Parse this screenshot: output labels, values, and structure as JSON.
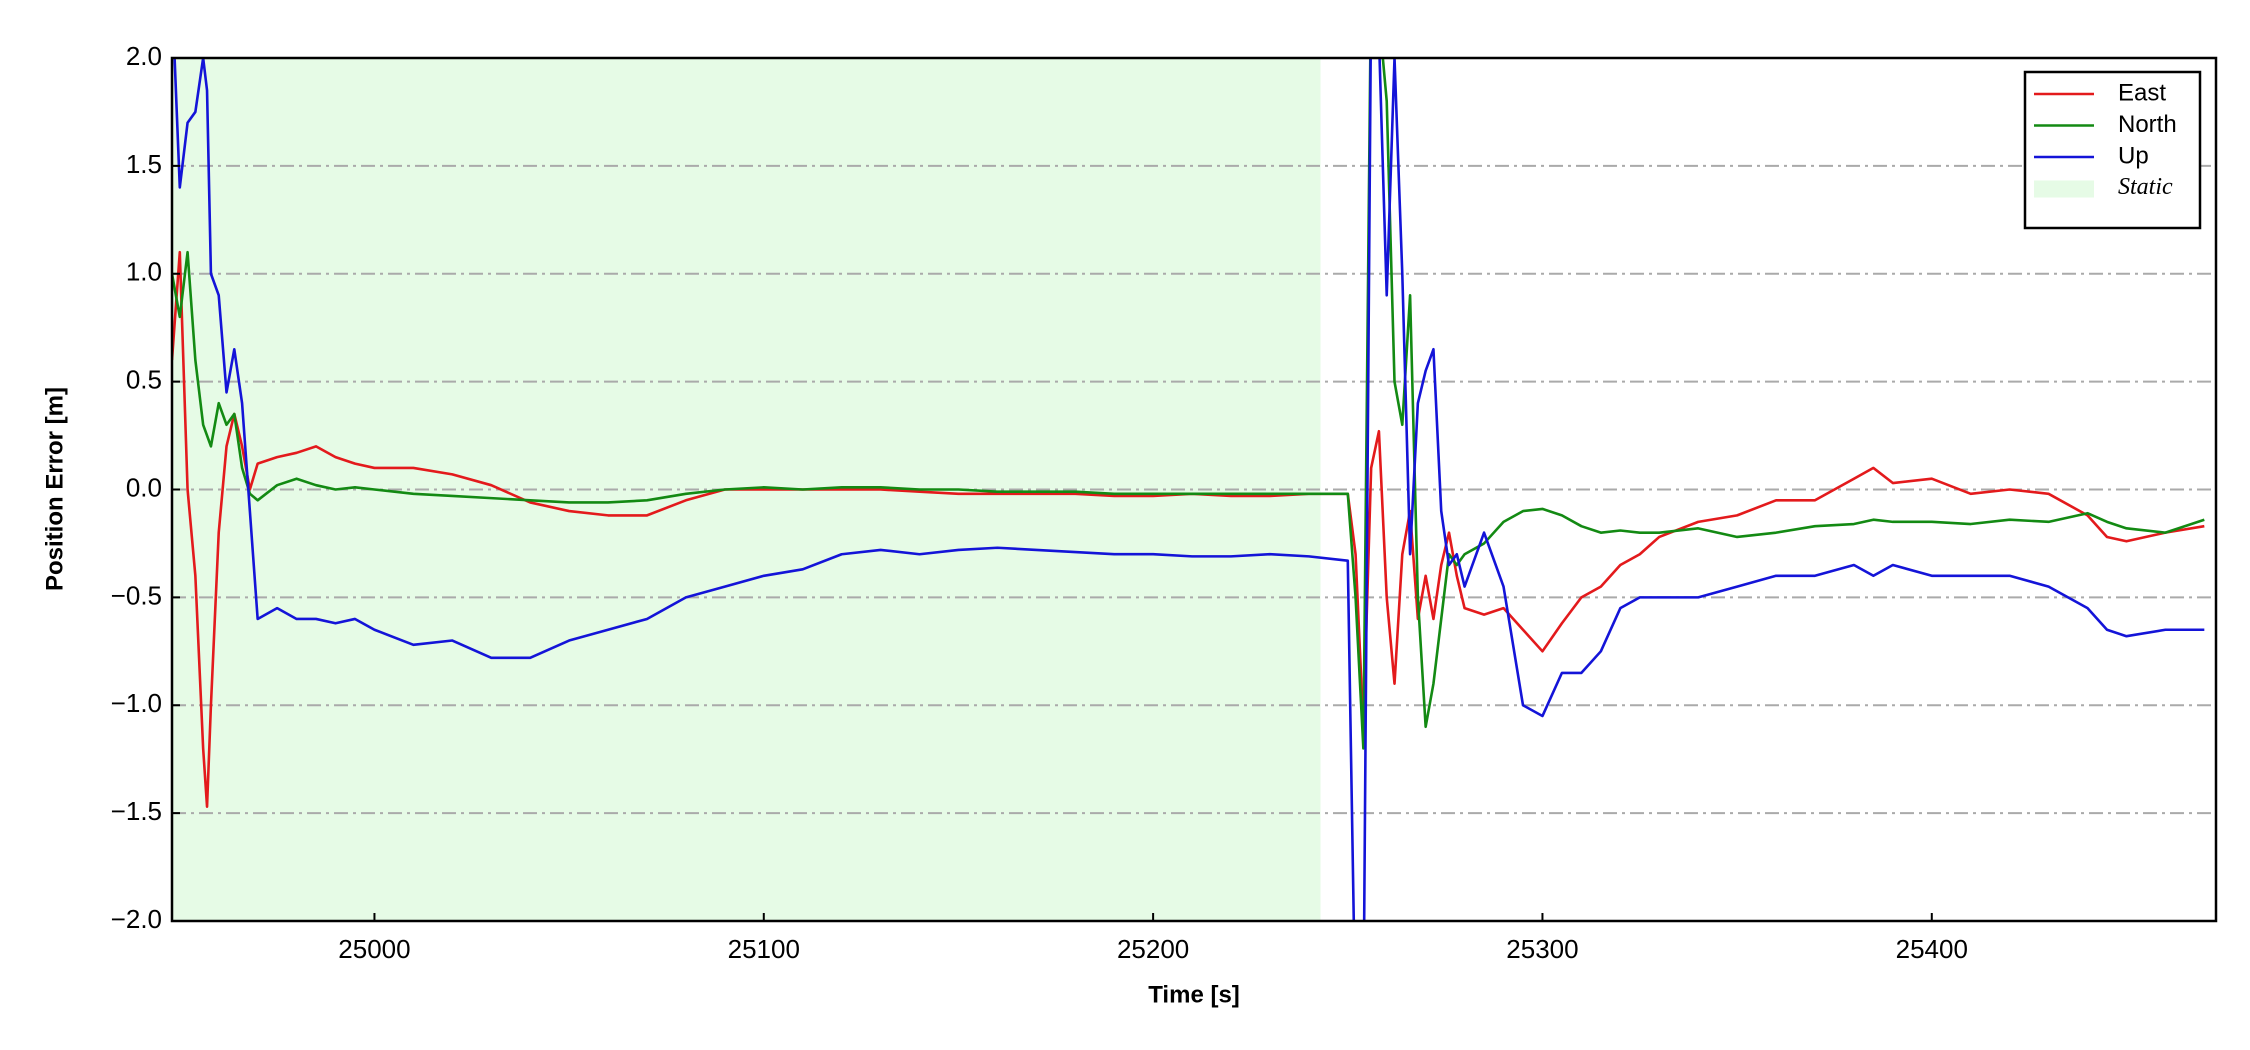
{
  "chart_data": {
    "type": "line",
    "xlabel": "Time [s]",
    "ylabel": "Position Error [m]",
    "x": [
      24948,
      24950,
      24952,
      24954,
      24956,
      24957,
      24958,
      24960,
      24962,
      24964,
      24966,
      24968,
      24970,
      24975,
      24980,
      24985,
      24990,
      24995,
      25000,
      25010,
      25020,
      25030,
      25040,
      25050,
      25060,
      25070,
      25080,
      25090,
      25100,
      25110,
      25120,
      25130,
      25140,
      25150,
      25160,
      25170,
      25180,
      25190,
      25200,
      25210,
      25220,
      25230,
      25240,
      25250,
      25252,
      25254,
      25256,
      25258,
      25260,
      25262,
      25264,
      25266,
      25268,
      25270,
      25272,
      25274,
      25276,
      25278,
      25280,
      25285,
      25290,
      25295,
      25300,
      25305,
      25310,
      25315,
      25320,
      25325,
      25330,
      25340,
      25350,
      25360,
      25370,
      25380,
      25385,
      25390,
      25400,
      25410,
      25420,
      25430,
      25440,
      25445,
      25450,
      25460,
      25470
    ],
    "series": [
      {
        "name": "East",
        "color": "#e31a1c",
        "values": [
          0.6,
          1.1,
          0.0,
          -0.4,
          -1.2,
          -1.47,
          -1.0,
          -0.2,
          0.2,
          0.35,
          0.2,
          0.0,
          0.12,
          0.15,
          0.17,
          0.2,
          0.15,
          0.12,
          0.1,
          0.1,
          0.07,
          0.02,
          -0.06,
          -0.1,
          -0.12,
          -0.12,
          -0.05,
          0.0,
          0.0,
          0.0,
          0.0,
          0.0,
          -0.01,
          -0.02,
          -0.02,
          -0.02,
          -0.02,
          -0.03,
          -0.03,
          -0.02,
          -0.03,
          -0.03,
          -0.02,
          -0.02,
          -0.3,
          -1.1,
          0.1,
          0.27,
          -0.5,
          -0.9,
          -0.3,
          -0.1,
          -0.6,
          -0.4,
          -0.6,
          -0.35,
          -0.2,
          -0.4,
          -0.55,
          -0.58,
          -0.55,
          -0.65,
          -0.75,
          -0.62,
          -0.5,
          -0.45,
          -0.35,
          -0.3,
          -0.22,
          -0.15,
          -0.12,
          -0.05,
          -0.05,
          0.05,
          0.1,
          0.03,
          0.05,
          -0.02,
          0.0,
          -0.02,
          -0.12,
          -0.22,
          -0.24,
          -0.2,
          -0.17
        ]
      },
      {
        "name": "North",
        "color": "#138a13",
        "values": [
          1.0,
          0.8,
          1.1,
          0.6,
          0.3,
          0.25,
          0.2,
          0.4,
          0.3,
          0.35,
          0.1,
          -0.02,
          -0.05,
          0.02,
          0.05,
          0.02,
          0.0,
          0.01,
          0.0,
          -0.02,
          -0.03,
          -0.04,
          -0.05,
          -0.06,
          -0.06,
          -0.05,
          -0.02,
          0.0,
          0.01,
          0.0,
          0.01,
          0.01,
          0.0,
          0.0,
          -0.01,
          -0.01,
          -0.01,
          -0.02,
          -0.02,
          -0.02,
          -0.02,
          -0.02,
          -0.02,
          -0.02,
          -0.5,
          -1.2,
          2.4,
          2.2,
          1.8,
          0.5,
          0.3,
          0.9,
          -0.5,
          -1.1,
          -0.9,
          -0.6,
          -0.3,
          -0.35,
          -0.3,
          -0.25,
          -0.15,
          -0.1,
          -0.09,
          -0.12,
          -0.17,
          -0.2,
          -0.19,
          -0.2,
          -0.2,
          -0.18,
          -0.22,
          -0.2,
          -0.17,
          -0.16,
          -0.14,
          -0.15,
          -0.15,
          -0.16,
          -0.14,
          -0.15,
          -0.11,
          -0.15,
          -0.18,
          -0.2,
          -0.14
        ]
      },
      {
        "name": "Up",
        "color": "#1414d8",
        "values": [
          2.3,
          1.4,
          1.7,
          1.75,
          2.0,
          1.85,
          1.0,
          0.9,
          0.45,
          0.65,
          0.4,
          -0.1,
          -0.6,
          -0.55,
          -0.6,
          -0.6,
          -0.62,
          -0.6,
          -0.65,
          -0.72,
          -0.7,
          -0.78,
          -0.78,
          -0.7,
          -0.65,
          -0.6,
          -0.5,
          -0.45,
          -0.4,
          -0.37,
          -0.3,
          -0.28,
          -0.3,
          -0.28,
          -0.27,
          -0.28,
          -0.29,
          -0.3,
          -0.3,
          -0.31,
          -0.31,
          -0.3,
          -0.31,
          -0.33,
          -2.5,
          -2.5,
          2.3,
          2.1,
          0.9,
          2.0,
          1.0,
          -0.3,
          0.4,
          0.55,
          0.65,
          -0.1,
          -0.35,
          -0.3,
          -0.45,
          -0.2,
          -0.45,
          -1.0,
          -1.05,
          -0.85,
          -0.85,
          -0.75,
          -0.55,
          -0.5,
          -0.5,
          -0.5,
          -0.45,
          -0.4,
          -0.4,
          -0.35,
          -0.4,
          -0.35,
          -0.4,
          -0.4,
          -0.4,
          -0.45,
          -0.55,
          -0.65,
          -0.68,
          -0.65,
          -0.65
        ]
      }
    ],
    "shaded": {
      "name": "Static",
      "color": "#e6fbe6",
      "xrange": [
        24948,
        25243
      ]
    },
    "xlim": [
      24948,
      25473
    ],
    "xticks": [
      25000,
      25100,
      25200,
      25300,
      25400
    ],
    "ylim": [
      -2.0,
      2.0
    ],
    "yticks": [
      {
        "value": -2.0,
        "label": "−2.0"
      },
      {
        "value": -1.5,
        "label": "−1.5"
      },
      {
        "value": -1.0,
        "label": "−1.0"
      },
      {
        "value": -0.5,
        "label": "−0.5"
      },
      {
        "value": 0.0,
        "label": "0.0"
      },
      {
        "value": 0.5,
        "label": "0.5"
      },
      {
        "value": 1.0,
        "label": "1.0"
      },
      {
        "value": 1.5,
        "label": "1.5"
      },
      {
        "value": 2.0,
        "label": "2.0"
      }
    ],
    "grid": true,
    "legend": "upper right"
  }
}
